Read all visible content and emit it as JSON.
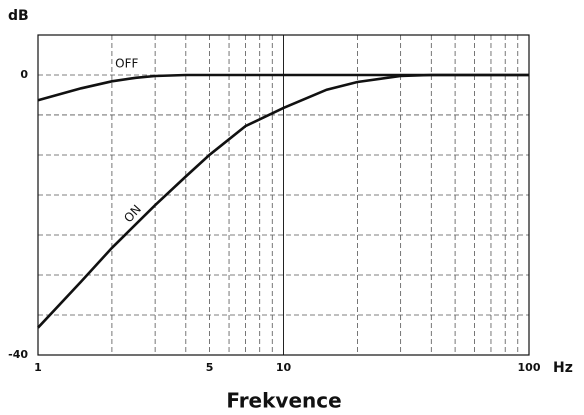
{
  "chart_data": {
    "type": "line",
    "y_label": "dB",
    "x_label": "Hz",
    "title": "Frekvence",
    "xlog": true,
    "xlim": [
      1,
      100
    ],
    "xticks": [
      1,
      5,
      10,
      100
    ],
    "xgrid": [
      2,
      3,
      4,
      5,
      6,
      7,
      8,
      9,
      20,
      30,
      40,
      50,
      60,
      70,
      80,
      90
    ],
    "xgrid_solid": [
      10
    ],
    "ylim": [
      -40,
      5.71
    ],
    "yticks": [
      -40,
      0
    ],
    "ygrid": [
      -34.29,
      -28.57,
      -22.86,
      -17.14,
      -11.43,
      -5.71
    ],
    "series": [
      {
        "name": "OFF",
        "color": "#111111",
        "x": [
          1,
          1.5,
          2,
          2.5,
          3,
          4,
          5,
          10,
          100
        ],
        "values": [
          -3.6,
          -1.9,
          -0.9,
          -0.4,
          -0.15,
          0,
          0,
          0,
          0
        ]
      },
      {
        "name": "ON",
        "color": "#111111",
        "x": [
          1,
          1.5,
          2,
          3,
          4,
          5,
          7,
          10,
          15,
          20,
          30,
          40,
          100
        ],
        "values": [
          -36.1,
          -29.5,
          -24.7,
          -18.6,
          -14.5,
          -11.4,
          -7.3,
          -4.7,
          -2.1,
          -1.0,
          -0.15,
          0,
          0
        ]
      }
    ]
  }
}
